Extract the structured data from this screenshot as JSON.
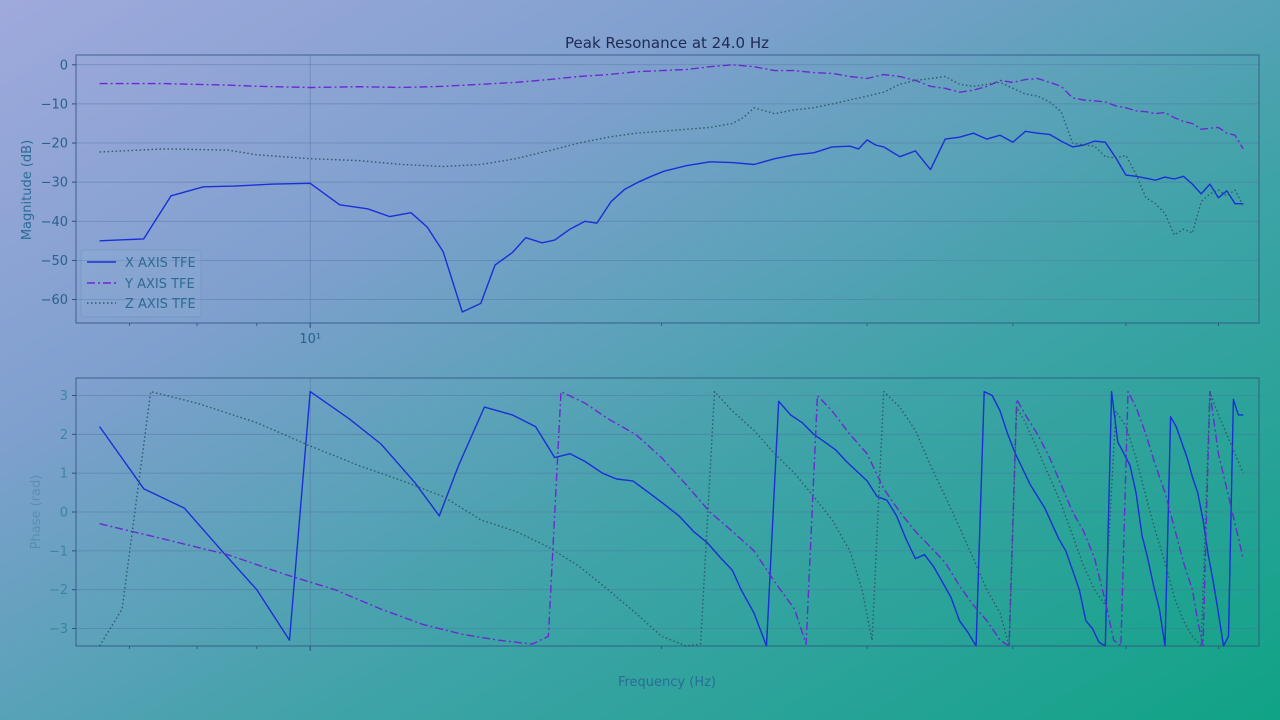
{
  "chart_data": [
    {
      "type": "line",
      "title": "Peak Resonance at 24.0 Hz",
      "ylabel": "Magnitude (dB)",
      "xscale": "log",
      "xlim": [
        6.3,
        65
      ],
      "ylim": [
        -66,
        2.5
      ],
      "yticks": [
        0,
        -10,
        -20,
        -30,
        -40,
        -50,
        -60
      ],
      "xtick_labels": [
        "10¹"
      ],
      "grid": true,
      "legend_position": "lower-left",
      "series": [
        {
          "name": "X AXIS TFE",
          "color": "#1a2fd6",
          "style": "solid",
          "x": [
            6.6,
            7.2,
            7.6,
            8.1,
            8.6,
            9.3,
            10.0,
            10.6,
            11.2,
            11.7,
            12.2,
            12.6,
            13.0,
            13.5,
            14.0,
            14.4,
            14.9,
            15.3,
            15.8,
            16.2,
            16.7,
            17.2,
            17.6,
            18.1,
            18.6,
            19.1,
            19.6,
            20.1,
            21.0,
            22.0,
            23.0,
            24.0,
            25.0,
            26.0,
            27.0,
            28.0,
            29.0,
            29.5,
            30.0,
            30.5,
            31.0,
            32.0,
            33.0,
            34.0,
            35.0,
            36.0,
            37.0,
            38.0,
            39.0,
            40.0,
            41.0,
            42.0,
            43.0,
            44.0,
            45.0,
            46.0,
            47.0,
            48.0,
            49.0,
            50.0,
            51.0,
            52.0,
            53.0,
            54.0,
            55.0,
            56.0,
            57.0,
            58.0,
            59.0,
            60.0,
            61.0,
            62.0,
            63.0
          ],
          "y": [
            -45,
            -44.5,
            -33.5,
            -31.2,
            -31,
            -30.5,
            -30.3,
            -35.8,
            -36.8,
            -38.8,
            -37.8,
            -41.5,
            -47.8,
            -63.2,
            -61,
            -51.2,
            -48,
            -44.2,
            -45.5,
            -44.8,
            -42,
            -40,
            -40.5,
            -35,
            -31.8,
            -30,
            -28.5,
            -27.2,
            -25.8,
            -24.8,
            -25,
            -25.5,
            -24,
            -23,
            -22.5,
            -21,
            -20.8,
            -21.5,
            -19.2,
            -20.5,
            -21,
            -23.5,
            -22,
            -26.8,
            -19,
            -18.5,
            -17.5,
            -19,
            -18,
            -19.8,
            -17,
            -17.5,
            -17.8,
            -19.5,
            -21,
            -20.5,
            -19.5,
            -19.8,
            -23.8,
            -28.2,
            -28.5,
            -29,
            -29.5,
            -28.7,
            -29.2,
            -28.5,
            -30.5,
            -33,
            -30.5,
            -34,
            -32.2,
            -35.5,
            -35.5
          ]
        },
        {
          "name": "Y AXIS TFE",
          "color": "#6a2ad0",
          "style": "dashdot",
          "x": [
            6.6,
            7.5,
            8.5,
            9.0,
            10.0,
            11.0,
            12.0,
            13.0,
            14.0,
            15.0,
            16.0,
            17.0,
            18.0,
            19.0,
            20.0,
            21.0,
            22.0,
            23.0,
            24.0,
            25.0,
            26.0,
            27.0,
            28.0,
            29.0,
            30.0,
            31.0,
            32.0,
            33.0,
            34.0,
            35.0,
            36.0,
            37.0,
            38.0,
            39.0,
            40.0,
            41.0,
            42.0,
            43.0,
            44.0,
            45.0,
            46.0,
            47.0,
            48.0,
            49.0,
            50.0,
            51.0,
            52.0,
            53.0,
            54.0,
            55.0,
            56.0,
            57.0,
            58.0,
            59.0,
            60.0,
            61.0,
            62.0,
            63.0
          ],
          "y": [
            -4.8,
            -4.8,
            -5.2,
            -5.5,
            -5.8,
            -5.6,
            -5.8,
            -5.5,
            -5,
            -4.5,
            -3.8,
            -3,
            -2.5,
            -1.8,
            -1.5,
            -1.2,
            -0.5,
            0,
            -0.5,
            -1.5,
            -1.5,
            -2,
            -2.2,
            -3,
            -3.5,
            -2.5,
            -3,
            -4,
            -5.5,
            -6,
            -7,
            -6.5,
            -5.5,
            -4,
            -4.5,
            -3.8,
            -3.5,
            -4.5,
            -5.5,
            -8.5,
            -9,
            -9.2,
            -9.5,
            -10.5,
            -11,
            -11.8,
            -12,
            -12.5,
            -12.2,
            -13.5,
            -14.5,
            -15,
            -16.5,
            -16.2,
            -16,
            -17.5,
            -18,
            -21.5
          ]
        },
        {
          "name": "Z AXIS TFE",
          "color": "#2c5a6a",
          "style": "dotted",
          "x": [
            6.6,
            7.5,
            8.5,
            9.0,
            10.0,
            11.0,
            12.0,
            13.0,
            14.0,
            15.0,
            16.0,
            17.0,
            18.0,
            19.0,
            20.0,
            21.0,
            22.0,
            23.0,
            23.5,
            24.0,
            25.0,
            26.0,
            27.0,
            28.0,
            29.0,
            30.0,
            31.0,
            32.0,
            33.0,
            34.0,
            35.0,
            36.0,
            37.0,
            38.0,
            39.0,
            40.0,
            41.0,
            42.0,
            43.0,
            44.0,
            45.0,
            46.0,
            47.0,
            48.0,
            49.0,
            50.0,
            51.0,
            52.0,
            53.0,
            54.0,
            55.0,
            56.0,
            57.0,
            58.0,
            59.0,
            60.0,
            61.0,
            62.0,
            63.0
          ],
          "y": [
            -22.3,
            -21.5,
            -21.8,
            -23,
            -24,
            -24.5,
            -25.5,
            -26,
            -25.5,
            -24,
            -22,
            -20,
            -18.5,
            -17.5,
            -17,
            -16.5,
            -16,
            -15,
            -13.5,
            -11,
            -12.5,
            -11.5,
            -11,
            -10,
            -9,
            -8,
            -7,
            -5,
            -4,
            -3.5,
            -3,
            -5,
            -5.5,
            -5,
            -4.5,
            -6,
            -7.5,
            -8,
            -9.5,
            -12,
            -20,
            -20.5,
            -20.8,
            -23.5,
            -23.8,
            -23.2,
            -28,
            -34,
            -35.5,
            -38,
            -43.5,
            -42,
            -43,
            -35,
            -33,
            -32,
            -33.5,
            -32,
            -36
          ]
        }
      ]
    },
    {
      "type": "line",
      "xlabel": "Frequency (Hz)",
      "ylabel": "Phase (rad)",
      "xscale": "log",
      "xlim": [
        6.3,
        65
      ],
      "ylim": [
        -3.45,
        3.45
      ],
      "yticks": [
        3,
        2,
        1,
        0,
        -1,
        -2,
        -3
      ],
      "grid": true,
      "series": [
        {
          "name": "X AXIS TFE",
          "color": "#1a2fd6",
          "style": "solid",
          "x": [
            6.6,
            7.2,
            7.8,
            8.4,
            9.0,
            9.6,
            10.0,
            10.8,
            11.5,
            12.3,
            12.9,
            13.4,
            14.1,
            14.9,
            15.6,
            16.2,
            16.7,
            17.2,
            17.8,
            18.3,
            18.9,
            19.5,
            20.1,
            20.7,
            21.3,
            21.9,
            22.5,
            23.0,
            23.4,
            24.0,
            24.6,
            25.2,
            25.8,
            26.4,
            27.0,
            27.6,
            28.2,
            28.8,
            29.4,
            30.0,
            30.6,
            31.2,
            31.8,
            32.4,
            33.0,
            33.6,
            34.2,
            34.8,
            35.4,
            36.0,
            36.6,
            37.2,
            37.8,
            38.4,
            39.0,
            39.6,
            40.2,
            40.8,
            41.4,
            42.0,
            42.6,
            43.2,
            43.8,
            44.4,
            45.0,
            45.6,
            46.2,
            46.8,
            47.4,
            48.0,
            48.6,
            49.2,
            49.8,
            50.4,
            51.0,
            51.6,
            52.2,
            52.8,
            53.4,
            54.0,
            54.6,
            55.2,
            55.8,
            56.4,
            57.0,
            57.6,
            58.2,
            58.8,
            59.4,
            60.0,
            60.6,
            61.2,
            61.8,
            62.4,
            63.0
          ],
          "y": [
            2.2,
            0.6,
            0.1,
            -1,
            -2,
            -3.3,
            3.1,
            2.4,
            1.75,
            0.75,
            -0.1,
            1.2,
            2.7,
            2.5,
            2.2,
            1.4,
            1.5,
            1.3,
            1.0,
            0.85,
            0.8,
            0.5,
            0.2,
            -0.1,
            -0.5,
            -0.8,
            -1.2,
            -1.5,
            -2,
            -2.6,
            -3.45,
            2.85,
            2.5,
            2.3,
            2.0,
            1.8,
            1.6,
            1.3,
            1.05,
            0.8,
            0.4,
            0.3,
            -0.1,
            -0.7,
            -1.2,
            -1.1,
            -1.4,
            -1.8,
            -2.2,
            -2.8,
            -3.1,
            -3.45,
            3.1,
            3.0,
            2.6,
            2.0,
            1.5,
            1.1,
            0.7,
            0.4,
            0.1,
            -0.3,
            -0.7,
            -1.0,
            -1.5,
            -2.0,
            -2.8,
            -3.0,
            -3.35,
            -3.45,
            3.1,
            1.8,
            1.5,
            1.2,
            0.5,
            -0.6,
            -1.2,
            -1.9,
            -2.5,
            -3.45,
            2.45,
            2.2,
            1.8,
            1.4,
            0.9,
            0.5,
            -0.2,
            -1.1,
            -1.8,
            -2.6,
            -3.45,
            -3.2,
            2.9,
            2.5,
            2.5
          ]
        },
        {
          "name": "Y AXIS TFE",
          "color": "#6a2ad0",
          "style": "dashdot",
          "x": [
            6.6,
            7.5,
            8.5,
            9.5,
            10.5,
            11.5,
            12.5,
            13.5,
            14.5,
            15.5,
            16.0,
            16.4,
            17.2,
            18.0,
            19.0,
            20.0,
            21.0,
            22.0,
            23.0,
            24.0,
            25.0,
            26.0,
            26.6,
            27.2,
            28.0,
            29.0,
            30.0,
            31.0,
            32.0,
            33.0,
            34.0,
            35.0,
            36.0,
            37.0,
            38.0,
            39.0,
            39.7,
            40.3,
            41.0,
            42.0,
            43.0,
            44.0,
            45.0,
            46.0,
            47.0,
            48.0,
            48.8,
            49.5,
            50.2,
            51.0,
            52.0,
            53.0,
            54.0,
            55.0,
            56.0,
            57.0,
            57.6,
            58.2,
            59.0,
            60.0,
            61.0,
            62.0,
            63.0
          ],
          "y": [
            -0.3,
            -0.7,
            -1.1,
            -1.6,
            -2,
            -2.5,
            -2.9,
            -3.15,
            -3.3,
            -3.4,
            -3.2,
            3.1,
            2.8,
            2.4,
            2.0,
            1.4,
            0.7,
            0.0,
            -0.5,
            -1.0,
            -1.8,
            -2.5,
            -3.4,
            3.0,
            2.6,
            2.0,
            1.5,
            0.6,
            0.0,
            -0.5,
            -0.9,
            -1.3,
            -1.9,
            -2.4,
            -2.8,
            -3.3,
            -3.45,
            2.9,
            2.5,
            2.0,
            1.4,
            0.7,
            0.0,
            -0.5,
            -1.2,
            -2.3,
            -3.3,
            -3.45,
            3.1,
            2.7,
            2.0,
            1.2,
            0.5,
            -0.4,
            -1.3,
            -2.0,
            -2.8,
            -3.45,
            3.1,
            1.5,
            0.6,
            -0.3,
            -1.2
          ]
        },
        {
          "name": "Z AXIS TFE",
          "color": "#2c5a6a",
          "style": "dotted",
          "x": [
            6.6,
            6.9,
            7.3,
            8.0,
            9.0,
            10.0,
            11.0,
            12.0,
            13.0,
            14.0,
            15.0,
            16.0,
            17.0,
            18.0,
            19.0,
            20.0,
            21.0,
            21.6,
            22.2,
            23.0,
            24.0,
            25.0,
            26.0,
            27.0,
            28.0,
            29.0,
            29.7,
            30.3,
            31.0,
            32.0,
            33.0,
            34.0,
            35.0,
            36.0,
            37.0,
            38.0,
            39.0,
            39.7,
            40.3,
            41.0,
            42.0,
            43.0,
            44.0,
            45.0,
            46.0,
            47.0,
            48.0,
            49.0,
            50.0,
            51.0,
            52.0,
            53.0,
            54.0,
            55.0,
            56.0,
            57.0,
            58.0,
            59.0,
            60.0,
            61.0,
            62.0,
            63.0
          ],
          "y": [
            -3.45,
            -2.5,
            3.1,
            2.8,
            2.3,
            1.7,
            1.2,
            0.8,
            0.4,
            -0.2,
            -0.5,
            -0.9,
            -1.4,
            -2.0,
            -2.6,
            -3.2,
            -3.45,
            -3.4,
            3.1,
            2.6,
            2.1,
            1.5,
            1.0,
            0.4,
            -0.2,
            -1.0,
            -2.0,
            -3.3,
            3.1,
            2.7,
            2.1,
            1.2,
            0.4,
            -0.4,
            -1.2,
            -2.0,
            -2.6,
            -3.45,
            2.7,
            2.3,
            1.6,
            0.9,
            0.2,
            -0.6,
            -1.4,
            -2.0,
            -2.4,
            2.6,
            2.2,
            1.4,
            0.4,
            -0.5,
            -1.3,
            -2.2,
            -2.8,
            -3.2,
            -3.45,
            3.1,
            2.5,
            2.0,
            1.5,
            1.0
          ]
        }
      ]
    }
  ]
}
